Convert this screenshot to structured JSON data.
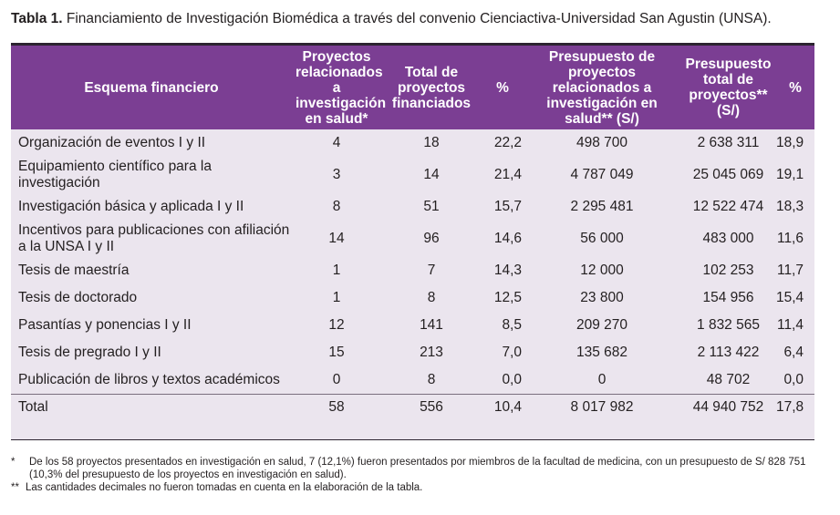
{
  "title": {
    "label": "Tabla 1.",
    "text": "Financiamiento de Investigación Biomédica a través del convenio Cienciactiva-Universidad San Agustin (UNSA)."
  },
  "table": {
    "headers": [
      "Esquema financiero",
      "Proyectos relacionados a investigación en salud*",
      "Total de proyectos financiados",
      "%",
      "Presupuesto de proyectos relacionados a investigación en salud** (S/)",
      "Presupuesto total de proyectos** (S/)",
      "%"
    ],
    "rows": [
      [
        "Organización de eventos I y II",
        "4",
        "18",
        "22,2",
        "498 700",
        "2 638 311",
        "18,9"
      ],
      [
        "Equipamiento científico para la investigación",
        "3",
        "14",
        "21,4",
        "4 787 049",
        "25 045 069",
        "19,1"
      ],
      [
        "Investigación básica y aplicada I y II",
        "8",
        "51",
        "15,7",
        "2 295 481",
        "12 522 474",
        "18,3"
      ],
      [
        "Incentivos para publicaciones con afiliación a la UNSA I y II",
        "14",
        "96",
        "14,6",
        "56 000",
        "483 000",
        "11,6"
      ],
      [
        "Tesis de maestría",
        "1",
        "7",
        "14,3",
        "12 000",
        "102 253",
        "11,7"
      ],
      [
        "Tesis de doctorado",
        "1",
        "8",
        "12,5",
        "23 800",
        "154 956",
        "15,4"
      ],
      [
        "Pasantías y ponencias I y II",
        "12",
        "141",
        "8,5",
        "209 270",
        "1 832 565",
        "11,4"
      ],
      [
        "Tesis de pregrado I y II",
        "15",
        "213",
        "7,0",
        "135 682",
        "2 113 422",
        "6,4"
      ],
      [
        "Publicación de libros y textos académicos",
        "0",
        "8",
        "0,0",
        "0",
        "48 702",
        "0,0"
      ],
      [
        "Total",
        "58",
        "556",
        "10,4",
        "8 017 982",
        "44 940 752",
        "17,8"
      ]
    ]
  },
  "footnotes": [
    {
      "mark": "*",
      "text": "De los 58 proyectos presentados en investigación en salud, 7 (12,1%) fueron presentados por miembros de la facultad de medicina, con un presupuesto de S/ 828 751 (10,3% del presupuesto de los proyectos en investigación en salud)."
    },
    {
      "mark": "**",
      "text": "Las cantidades decimales no fueron tomadas en cuenta en la elaboración de la tabla."
    }
  ]
}
